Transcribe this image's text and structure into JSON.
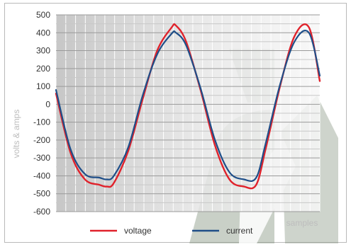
{
  "chart_data": {
    "type": "line",
    "title": "",
    "xlabel": "samples",
    "ylabel": "volts & amps",
    "ylim": [
      -600,
      500
    ],
    "yticks": [
      "500",
      "400",
      "300",
      "200",
      "100",
      "0",
      "-100",
      "-200",
      "-300",
      "-400",
      "-500",
      "-600"
    ],
    "ytick_values": [
      500,
      400,
      300,
      200,
      100,
      0,
      -100,
      -200,
      -300,
      -400,
      -500,
      -600
    ],
    "xlim": [
      0,
      365
    ],
    "grid": true,
    "legend_position": "bottom",
    "series": [
      {
        "name": "voltage",
        "color": "#e0222b",
        "x": [
          0,
          20,
          40,
          60,
          70,
          80,
          100,
          120,
          140,
          160,
          166,
          180,
          200,
          220,
          240,
          260,
          277,
          290,
          310,
          330,
          350,
          365
        ],
        "values": [
          60,
          -270,
          -420,
          -450,
          -460,
          -440,
          -260,
          30,
          300,
          430,
          440,
          350,
          80,
          -230,
          -420,
          -460,
          -450,
          -250,
          100,
          380,
          430,
          130
        ]
      },
      {
        "name": "current",
        "color": "#1f4e88",
        "x": [
          0,
          20,
          40,
          60,
          70,
          80,
          100,
          120,
          140,
          160,
          166,
          180,
          200,
          220,
          240,
          260,
          277,
          290,
          310,
          330,
          350,
          365
        ],
        "values": [
          80,
          -250,
          -390,
          -410,
          -420,
          -400,
          -240,
          50,
          280,
          395,
          400,
          330,
          90,
          -200,
          -380,
          -420,
          -410,
          -220,
          110,
          350,
          400,
          160
        ]
      }
    ]
  }
}
